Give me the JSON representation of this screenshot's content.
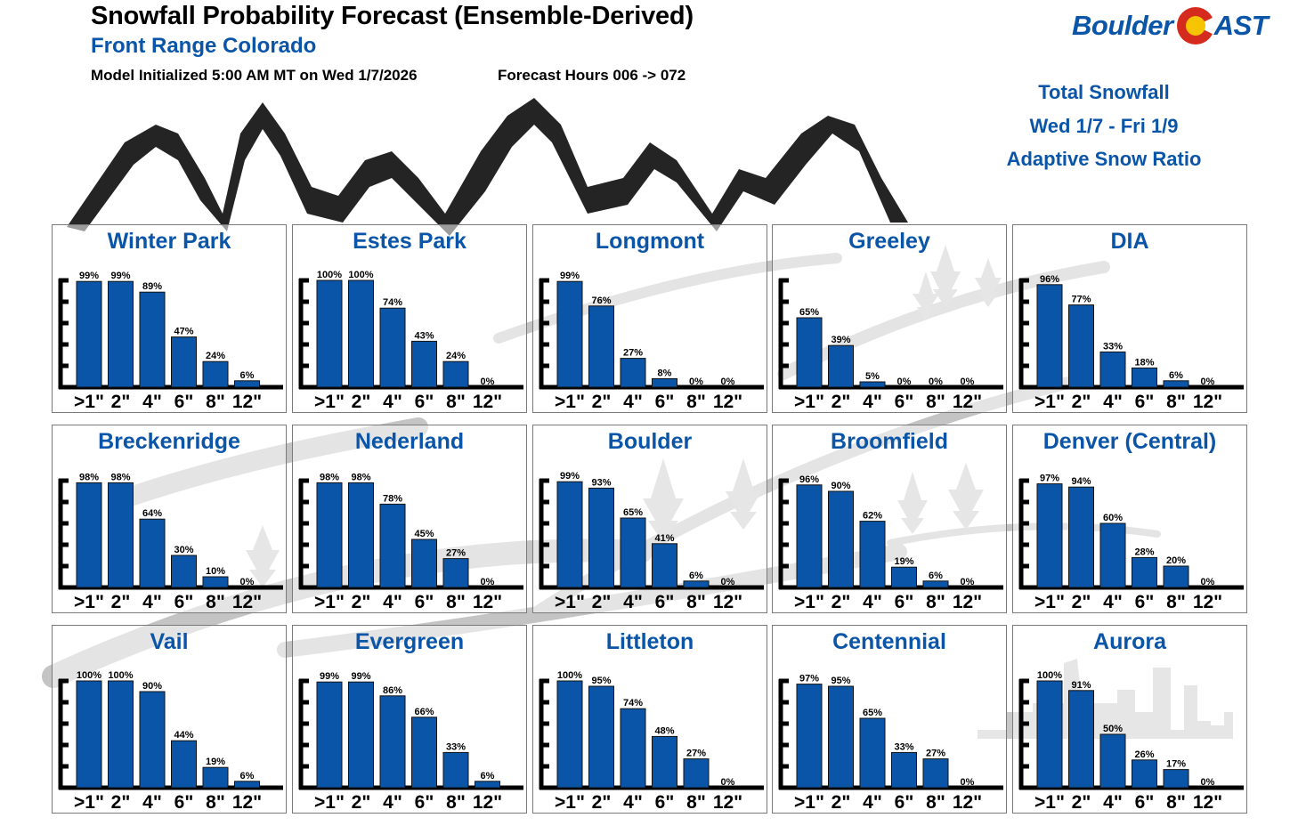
{
  "header": {
    "title": "Snowfall Probability Forecast (Ensemble-Derived)",
    "subtitle": "Front Range Colorado",
    "model_init": "Model Initialized 5:00 AM MT on Wed 1/7/2026",
    "forecast_hours": "Forecast Hours 006 -> 072"
  },
  "logo": {
    "text_left": "Boulder",
    "text_right": "AST",
    "icon": "colorado-flag-c-icon"
  },
  "info": {
    "line1": "Total Snowfall",
    "line2": "Wed 1/7 - Fri 1/9",
    "line3": "Adaptive Snow Ratio"
  },
  "colors": {
    "bar": "#0a55a8",
    "title_blue": "#0a55a8",
    "background_art": "#c4c4c4"
  },
  "chart_data": [
    {
      "type": "bar",
      "title": "Winter Park",
      "categories": [
        ">1\"",
        "2\"",
        "4\"",
        "6\"",
        "8\"",
        "12\""
      ],
      "values": [
        99,
        99,
        89,
        47,
        24,
        6
      ],
      "ylim": [
        0,
        100
      ],
      "unit": "%"
    },
    {
      "type": "bar",
      "title": "Estes Park",
      "categories": [
        ">1\"",
        "2\"",
        "4\"",
        "6\"",
        "8\"",
        "12\""
      ],
      "values": [
        100,
        100,
        74,
        43,
        24,
        0
      ],
      "ylim": [
        0,
        100
      ],
      "unit": "%"
    },
    {
      "type": "bar",
      "title": "Longmont",
      "categories": [
        ">1\"",
        "2\"",
        "4\"",
        "6\"",
        "8\"",
        "12\""
      ],
      "values": [
        99,
        76,
        27,
        8,
        0,
        0
      ],
      "ylim": [
        0,
        100
      ],
      "unit": "%"
    },
    {
      "type": "bar",
      "title": "Greeley",
      "categories": [
        ">1\"",
        "2\"",
        "4\"",
        "6\"",
        "8\"",
        "12\""
      ],
      "values": [
        65,
        39,
        5,
        0,
        0,
        0
      ],
      "ylim": [
        0,
        100
      ],
      "unit": "%"
    },
    {
      "type": "bar",
      "title": "DIA",
      "categories": [
        ">1\"",
        "2\"",
        "4\"",
        "6\"",
        "8\"",
        "12\""
      ],
      "values": [
        96,
        77,
        33,
        18,
        6,
        0
      ],
      "ylim": [
        0,
        100
      ],
      "unit": "%"
    },
    {
      "type": "bar",
      "title": "Breckenridge",
      "categories": [
        ">1\"",
        "2\"",
        "4\"",
        "6\"",
        "8\"",
        "12\""
      ],
      "values": [
        98,
        98,
        64,
        30,
        10,
        0
      ],
      "ylim": [
        0,
        100
      ],
      "unit": "%"
    },
    {
      "type": "bar",
      "title": "Nederland",
      "categories": [
        ">1\"",
        "2\"",
        "4\"",
        "6\"",
        "8\"",
        "12\""
      ],
      "values": [
        98,
        98,
        78,
        45,
        27,
        0
      ],
      "ylim": [
        0,
        100
      ],
      "unit": "%"
    },
    {
      "type": "bar",
      "title": "Boulder",
      "categories": [
        ">1\"",
        "2\"",
        "4\"",
        "6\"",
        "8\"",
        "12\""
      ],
      "values": [
        99,
        93,
        65,
        41,
        6,
        0
      ],
      "ylim": [
        0,
        100
      ],
      "unit": "%"
    },
    {
      "type": "bar",
      "title": "Broomfield",
      "categories": [
        ">1\"",
        "2\"",
        "4\"",
        "6\"",
        "8\"",
        "12\""
      ],
      "values": [
        96,
        90,
        62,
        19,
        6,
        0
      ],
      "ylim": [
        0,
        100
      ],
      "unit": "%"
    },
    {
      "type": "bar",
      "title": "Denver (Central)",
      "categories": [
        ">1\"",
        "2\"",
        "4\"",
        "6\"",
        "8\"",
        "12\""
      ],
      "values": [
        97,
        94,
        60,
        28,
        20,
        0
      ],
      "ylim": [
        0,
        100
      ],
      "unit": "%"
    },
    {
      "type": "bar",
      "title": "Vail",
      "categories": [
        ">1\"",
        "2\"",
        "4\"",
        "6\"",
        "8\"",
        "12\""
      ],
      "values": [
        100,
        100,
        90,
        44,
        19,
        6
      ],
      "ylim": [
        0,
        100
      ],
      "unit": "%"
    },
    {
      "type": "bar",
      "title": "Evergreen",
      "categories": [
        ">1\"",
        "2\"",
        "4\"",
        "6\"",
        "8\"",
        "12\""
      ],
      "values": [
        99,
        99,
        86,
        66,
        33,
        6
      ],
      "ylim": [
        0,
        100
      ],
      "unit": "%"
    },
    {
      "type": "bar",
      "title": "Littleton",
      "categories": [
        ">1\"",
        "2\"",
        "4\"",
        "6\"",
        "8\"",
        "12\""
      ],
      "values": [
        100,
        95,
        74,
        48,
        27,
        0
      ],
      "ylim": [
        0,
        100
      ],
      "unit": "%"
    },
    {
      "type": "bar",
      "title": "Centennial",
      "categories": [
        ">1\"",
        "2\"",
        "4\"",
        "6\"",
        "8\"",
        "12\""
      ],
      "values": [
        97,
        95,
        65,
        33,
        27,
        0
      ],
      "ylim": [
        0,
        100
      ],
      "unit": "%"
    },
    {
      "type": "bar",
      "title": "Aurora",
      "categories": [
        ">1\"",
        "2\"",
        "4\"",
        "6\"",
        "8\"",
        "12\""
      ],
      "values": [
        100,
        91,
        50,
        26,
        17,
        0
      ],
      "ylim": [
        0,
        100
      ],
      "unit": "%"
    }
  ]
}
